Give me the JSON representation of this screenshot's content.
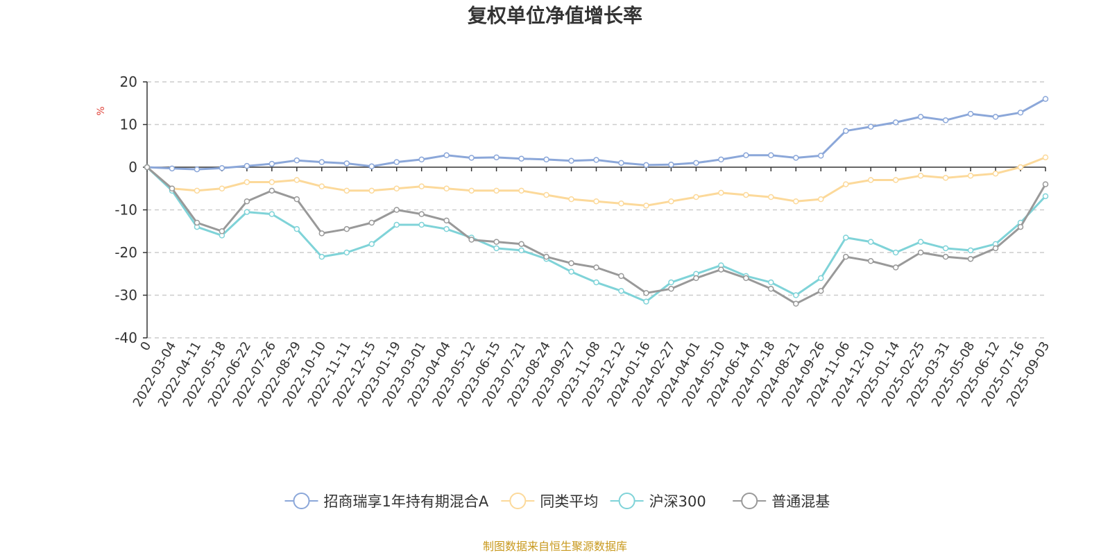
{
  "chart_data": {
    "type": "line",
    "title": "复权单位净值增长率",
    "ylabel": "%",
    "ylim": [
      -40,
      20
    ],
    "yticks": [
      20,
      10,
      0,
      -10,
      -20,
      -30,
      -40
    ],
    "grid": true,
    "legend_position": "bottom",
    "x_ticks": [
      "0",
      "2022-03-04",
      "2022-04-11",
      "2022-05-18",
      "2022-06-22",
      "2022-07-26",
      "2022-08-29",
      "2022-10-10",
      "2022-11-11",
      "2022-12-15",
      "2023-01-19",
      "2023-03-01",
      "2023-04-04",
      "2023-05-12",
      "2023-06-15",
      "2023-07-21",
      "2023-08-24",
      "2023-09-27",
      "2023-11-08",
      "2023-12-12",
      "2024-01-16",
      "2024-02-27",
      "2024-04-01",
      "2024-05-10",
      "2024-06-14",
      "2024-07-18",
      "2024-08-21",
      "2024-09-26",
      "2024-11-06",
      "2024-12-10",
      "2025-01-14",
      "2025-02-25",
      "2025-03-31",
      "2025-05-08",
      "2025-06-12",
      "2025-07-16",
      "2025-09-03"
    ],
    "series": [
      {
        "name": "招商瑞享1年持有期混合A",
        "color": "#8ba7d9",
        "values": [
          0,
          -0.3,
          -0.5,
          -0.2,
          0.3,
          0.8,
          1.6,
          1.2,
          0.9,
          0.2,
          1.2,
          1.8,
          2.8,
          2.2,
          2.3,
          2.0,
          1.8,
          1.5,
          1.7,
          1.0,
          0.5,
          0.6,
          1.0,
          1.8,
          2.8,
          2.8,
          2.2,
          2.7,
          8.5,
          9.5,
          10.5,
          11.8,
          11.0,
          12.5,
          11.8,
          12.8,
          16.0
        ]
      },
      {
        "name": "同类平均",
        "color": "#fcd99a",
        "values": [
          0,
          -5.0,
          -5.5,
          -5.0,
          -3.5,
          -3.5,
          -3.0,
          -4.5,
          -5.5,
          -5.5,
          -5.0,
          -4.5,
          -5.0,
          -5.5,
          -5.5,
          -5.5,
          -6.5,
          -7.5,
          -8.0,
          -8.5,
          -9.0,
          -8.0,
          -7.0,
          -6.0,
          -6.5,
          -7.0,
          -8.0,
          -7.5,
          -4.0,
          -3.0,
          -3.0,
          -2.0,
          -2.5,
          -2.0,
          -1.5,
          0.0,
          2.3
        ]
      },
      {
        "name": "沪深300",
        "color": "#7fd3d8",
        "values": [
          0,
          -5.5,
          -14.0,
          -16.0,
          -10.5,
          -11.0,
          -14.5,
          -21.0,
          -20.0,
          -18.0,
          -13.5,
          -13.5,
          -14.5,
          -16.5,
          -19.0,
          -19.5,
          -21.5,
          -24.5,
          -27.0,
          -29.0,
          -31.5,
          -27.0,
          -25.0,
          -23.0,
          -25.5,
          -27.0,
          -30.0,
          -26.0,
          -16.5,
          -17.5,
          -20.0,
          -17.5,
          -19.0,
          -19.5,
          -18.0,
          -13.0,
          -6.8
        ]
      },
      {
        "name": "普通混基",
        "color": "#999999",
        "values": [
          0,
          -5.0,
          -13.0,
          -15.0,
          -8.0,
          -5.5,
          -7.5,
          -15.5,
          -14.5,
          -13.0,
          -10.0,
          -11.0,
          -12.5,
          -17.0,
          -17.5,
          -18.0,
          -21.0,
          -22.5,
          -23.5,
          -25.5,
          -29.5,
          -28.5,
          -26.0,
          -24.0,
          -26.0,
          -28.5,
          -32.0,
          -29.0,
          -21.0,
          -22.0,
          -23.5,
          -20.0,
          -21.0,
          -21.5,
          -19.0,
          -14.0,
          -4.0
        ]
      }
    ]
  },
  "source_text": "制图数据来自恒生聚源数据库",
  "source_color": "#c8991e",
  "unit_color": "#e0433a"
}
